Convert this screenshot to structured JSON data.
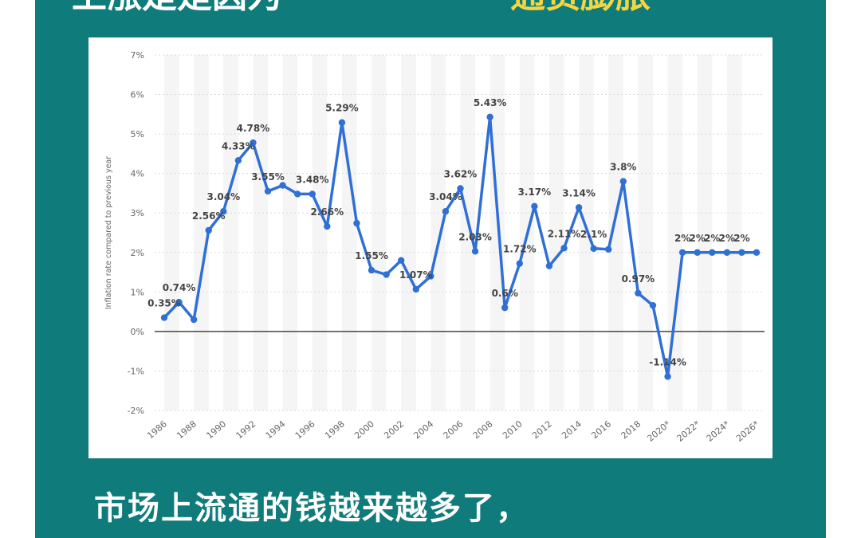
{
  "headline": {
    "white_part": "上涨是是因为",
    "yellow_part": "通货膨胀"
  },
  "caption": "市场上流通的钱越来越多了，",
  "colors": {
    "teal_background": "#0f7b7b",
    "line": "#2f6fd6",
    "highlight_text": "#f6d640"
  },
  "chart_data": {
    "type": "line",
    "ylabel": "Inflation rate compared to previous year",
    "xlabel": "",
    "ylim": [
      -2,
      7
    ],
    "yticks": [
      "-2%",
      "-1%",
      "0%",
      "1%",
      "2%",
      "3%",
      "4%",
      "5%",
      "6%",
      "7%"
    ],
    "x": [
      1986,
      1987,
      1988,
      1989,
      1990,
      1991,
      1992,
      1993,
      1994,
      1995,
      1996,
      1997,
      1998,
      1999,
      2000,
      2001,
      2002,
      2003,
      2004,
      2005,
      2006,
      2007,
      2008,
      2009,
      2010,
      2011,
      2012,
      2013,
      2014,
      2015,
      2016,
      2017,
      2018,
      2019,
      2020,
      2021,
      2022,
      2023,
      2024,
      2025,
      2026
    ],
    "x_tick_labels": [
      "1986",
      "1988",
      "1990",
      "1992",
      "1994",
      "1996",
      "1998",
      "2000",
      "2002",
      "2004",
      "2006",
      "2008",
      "2010",
      "2012",
      "2014",
      "2016",
      "2018",
      "2020*",
      "2022*",
      "2024*",
      "2026*"
    ],
    "x_tick_years": [
      1986,
      1988,
      1990,
      1992,
      1994,
      1996,
      1998,
      2000,
      2002,
      2004,
      2006,
      2008,
      2010,
      2012,
      2014,
      2016,
      2018,
      2020,
      2022,
      2024,
      2026
    ],
    "series": [
      {
        "values": [
          0.35,
          0.74,
          0.3,
          2.56,
          3.04,
          4.33,
          4.78,
          3.55,
          3.7,
          3.48,
          3.48,
          2.66,
          5.29,
          2.74,
          1.55,
          1.44,
          1.8,
          1.07,
          1.4,
          3.04,
          3.62,
          2.03,
          5.43,
          0.6,
          1.72,
          3.17,
          1.66,
          2.11,
          3.14,
          2.1,
          2.08,
          3.8,
          0.97,
          0.66,
          -1.14,
          2,
          2,
          2,
          2,
          2,
          2
        ]
      }
    ],
    "data_labels": [
      {
        "year": 1986,
        "text": "0.35%"
      },
      {
        "year": 1987,
        "text": "0.74%"
      },
      {
        "year": 1989,
        "text": "2.56%"
      },
      {
        "year": 1990,
        "text": "3.04%"
      },
      {
        "year": 1991,
        "text": "4.33%"
      },
      {
        "year": 1992,
        "text": "4.78%"
      },
      {
        "year": 1993,
        "text": "3.55%"
      },
      {
        "year": 1996,
        "text": "3.48%"
      },
      {
        "year": 1997,
        "text": "2.66%"
      },
      {
        "year": 1998,
        "text": "5.29%"
      },
      {
        "year": 2000,
        "text": "1.55%"
      },
      {
        "year": 2003,
        "text": "1.07%"
      },
      {
        "year": 2005,
        "text": "3.04%"
      },
      {
        "year": 2006,
        "text": "3.62%"
      },
      {
        "year": 2007,
        "text": "2.03%"
      },
      {
        "year": 2008,
        "text": "5.43%"
      },
      {
        "year": 2009,
        "text": "0.6%"
      },
      {
        "year": 2010,
        "text": "1.72%"
      },
      {
        "year": 2011,
        "text": "3.17%"
      },
      {
        "year": 2013,
        "text": "2.11%"
      },
      {
        "year": 2014,
        "text": "3.14%"
      },
      {
        "year": 2015,
        "text": "2.1%"
      },
      {
        "year": 2017,
        "text": "3.8%"
      },
      {
        "year": 2018,
        "text": "0.97%"
      },
      {
        "year": 2020,
        "text": "-1.14%"
      },
      {
        "year": 2021,
        "text": "2%"
      },
      {
        "year": 2022,
        "text": "2%"
      },
      {
        "year": 2023,
        "text": "2%"
      },
      {
        "year": 2024,
        "text": "2%"
      },
      {
        "year": 2025,
        "text": "2%"
      }
    ],
    "grid": true,
    "legend": "none"
  }
}
